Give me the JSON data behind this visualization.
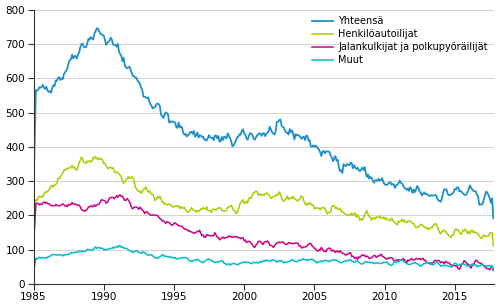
{
  "title": "",
  "series": {
    "Yhteensä": {
      "color": "#1E90C8",
      "linewidth": 1.3
    },
    "Henkilöautoilijat": {
      "color": "#AACC00",
      "linewidth": 1.1
    },
    "Jalankulkijat ja polkupyöräilijät": {
      "color": "#CC0088",
      "linewidth": 1.1
    },
    "Muut": {
      "color": "#00BBCC",
      "linewidth": 1.1
    }
  },
  "ylim": [
    0,
    800
  ],
  "yticks": [
    0,
    100,
    200,
    300,
    400,
    500,
    600,
    700,
    800
  ],
  "xticks": [
    1985,
    1990,
    1995,
    2000,
    2005,
    2010,
    2015
  ],
  "xlim": [
    1985.0,
    2017.83
  ],
  "background_color": "#ffffff",
  "grid_color": "#cccccc"
}
